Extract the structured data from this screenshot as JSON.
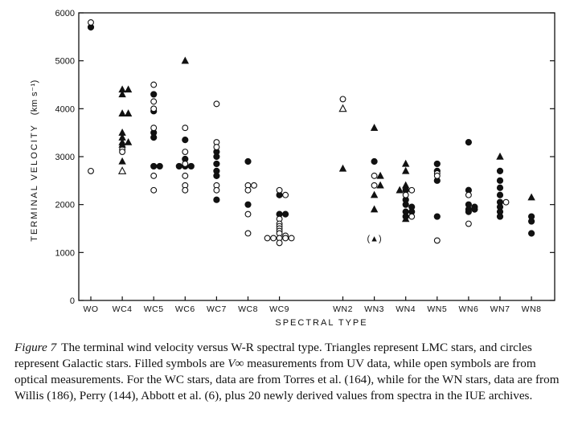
{
  "chart_data": {
    "type": "scatter",
    "title": "",
    "xlabel": "SPECTRAL TYPE",
    "ylabel": "TERMINAL VELOCITY",
    "ylabel_unit": "(km s⁻¹)",
    "ylim": [
      0,
      6000
    ],
    "yticks": [
      0,
      1000,
      2000,
      3000,
      4000,
      5000,
      6000
    ],
    "ytick_labels": [
      "0",
      "1000",
      "2000",
      "3000",
      "4000",
      "5000",
      "6000"
    ],
    "categories": [
      "WO",
      "WC4",
      "WC5",
      "WC6",
      "WC7",
      "WC8",
      "WC9",
      "WN2",
      "WN3",
      "WN4",
      "WN5",
      "WN6",
      "WN7",
      "WN8"
    ],
    "grid": false,
    "annotations": [
      {
        "text": "(▲)",
        "category": "WN3",
        "y": 1300
      }
    ],
    "series": [
      {
        "marker": "circle-filled",
        "points": [
          [
            "WO",
            5700
          ],
          [
            "WC5",
            4300
          ],
          [
            "WC5",
            3950
          ],
          [
            "WC5",
            3500
          ],
          [
            "WC5",
            3400
          ],
          [
            "WC5",
            2800
          ],
          [
            "WC5",
            2800
          ],
          [
            "WC6",
            3350
          ],
          [
            "WC6",
            2950
          ],
          [
            "WC6",
            2800
          ],
          [
            "WC6",
            2800
          ],
          [
            "WC6",
            2800
          ],
          [
            "WC7",
            3100
          ],
          [
            "WC7",
            3000
          ],
          [
            "WC7",
            2850
          ],
          [
            "WC7",
            2700
          ],
          [
            "WC7",
            2600
          ],
          [
            "WC7",
            2100
          ],
          [
            "WC8",
            2900
          ],
          [
            "WC8",
            2000
          ],
          [
            "WC9",
            2200
          ],
          [
            "WC9",
            1800
          ],
          [
            "WC9",
            1800
          ],
          [
            "WN3",
            2900
          ],
          [
            "WN4",
            2300
          ],
          [
            "WN4",
            2100
          ],
          [
            "WN4",
            2000
          ],
          [
            "WN4",
            1950
          ],
          [
            "WN4",
            1850
          ],
          [
            "WN4",
            1750
          ],
          [
            "WN4",
            1850
          ],
          [
            "WN5",
            2850
          ],
          [
            "WN5",
            2700
          ],
          [
            "WN5",
            2500
          ],
          [
            "WN5",
            1750
          ],
          [
            "WN6",
            3300
          ],
          [
            "WN6",
            2300
          ],
          [
            "WN6",
            2000
          ],
          [
            "WN6",
            1950
          ],
          [
            "WN6",
            1900
          ],
          [
            "WN6",
            1900
          ],
          [
            "WN6",
            1850
          ],
          [
            "WN7",
            2700
          ],
          [
            "WN7",
            2500
          ],
          [
            "WN7",
            2350
          ],
          [
            "WN7",
            2200
          ],
          [
            "WN7",
            2050
          ],
          [
            "WN7",
            1950
          ],
          [
            "WN7",
            1850
          ],
          [
            "WN7",
            1750
          ],
          [
            "WN8",
            1750
          ],
          [
            "WN8",
            1650
          ],
          [
            "WN8",
            1400
          ]
        ]
      },
      {
        "marker": "circle-open",
        "points": [
          [
            "WO",
            5800
          ],
          [
            "WO",
            2700
          ],
          [
            "WC4",
            3150
          ],
          [
            "WC4",
            3100
          ],
          [
            "WC5",
            4500
          ],
          [
            "WC5",
            4150
          ],
          [
            "WC5",
            4000
          ],
          [
            "WC5",
            3600
          ],
          [
            "WC5",
            2600
          ],
          [
            "WC5",
            2300
          ],
          [
            "WC6",
            3600
          ],
          [
            "WC6",
            3100
          ],
          [
            "WC6",
            2850
          ],
          [
            "WC6",
            2600
          ],
          [
            "WC6",
            2400
          ],
          [
            "WC6",
            2300
          ],
          [
            "WC7",
            4100
          ],
          [
            "WC7",
            3300
          ],
          [
            "WC7",
            3200
          ],
          [
            "WC7",
            2400
          ],
          [
            "WC7",
            2300
          ],
          [
            "WC8",
            2400
          ],
          [
            "WC8",
            2400
          ],
          [
            "WC8",
            2300
          ],
          [
            "WC8",
            1800
          ],
          [
            "WC8",
            1400
          ],
          [
            "WC9",
            2300
          ],
          [
            "WC9",
            2200
          ],
          [
            "WC9",
            1700
          ],
          [
            "WC9",
            1600
          ],
          [
            "WC9",
            1550
          ],
          [
            "WC9",
            1500
          ],
          [
            "WC9",
            1450
          ],
          [
            "WC9",
            1400
          ],
          [
            "WC9",
            1350
          ],
          [
            "WC9",
            1300
          ],
          [
            "WC9",
            1300
          ],
          [
            "WC9",
            1300
          ],
          [
            "WC9",
            1300
          ],
          [
            "WC9",
            1300
          ],
          [
            "WC9",
            1200
          ],
          [
            "WN2",
            4200
          ],
          [
            "WN3",
            2600
          ],
          [
            "WN3",
            2400
          ],
          [
            "WN4",
            2300
          ],
          [
            "WN4",
            2200
          ],
          [
            "WN4",
            1750
          ],
          [
            "WN5",
            2650
          ],
          [
            "WN5",
            2600
          ],
          [
            "WN5",
            1250
          ],
          [
            "WN6",
            2200
          ],
          [
            "WN6",
            1600
          ],
          [
            "WN7",
            2050
          ]
        ]
      },
      {
        "marker": "triangle-filled",
        "points": [
          [
            "WC4",
            4400
          ],
          [
            "WC4",
            4400
          ],
          [
            "WC4",
            4300
          ],
          [
            "WC4",
            3900
          ],
          [
            "WC4",
            3900
          ],
          [
            "WC4",
            3500
          ],
          [
            "WC4",
            3400
          ],
          [
            "WC4",
            3300
          ],
          [
            "WC4",
            3300
          ],
          [
            "WC4",
            3250
          ],
          [
            "WC4",
            2900
          ],
          [
            "WC6",
            5000
          ],
          [
            "WN2",
            2750
          ],
          [
            "WN3",
            3600
          ],
          [
            "WN3",
            2600
          ],
          [
            "WN3",
            2400
          ],
          [
            "WN3",
            2200
          ],
          [
            "WN3",
            1900
          ],
          [
            "WN4",
            2850
          ],
          [
            "WN4",
            2700
          ],
          [
            "WN4",
            2400
          ],
          [
            "WN4",
            2300
          ],
          [
            "WN4",
            1700
          ],
          [
            "WN7",
            3000
          ],
          [
            "WN8",
            2150
          ]
        ]
      },
      {
        "marker": "triangle-open",
        "points": [
          [
            "WC4",
            2700
          ],
          [
            "WN2",
            4000
          ]
        ]
      }
    ]
  },
  "caption": {
    "label": "Figure 7",
    "text_before": "The terminal wind velocity versus W-R spectral type. Triangles represent LMC stars, and circles represent Galactic stars. Filled symbols are ",
    "vinf": "V∞",
    "text_after": " measurements from UV data, while open symbols are from optical measurements. For the WC stars, data are from Torres et al. (164), while for the WN stars, data are from Willis (186), Perry (144), Abbott et al. (6), plus 20 newly derived values from spectra in the IUE archives."
  }
}
